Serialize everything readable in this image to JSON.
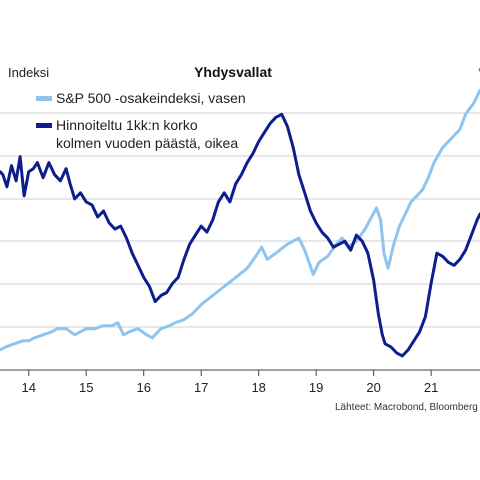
{
  "chart_data": {
    "type": "line",
    "title": "Yhdysvallat",
    "ylabel_left": "Indeksi",
    "xlabel": "",
    "x_tick_labels": [
      "14",
      "15",
      "16",
      "17",
      "18",
      "19",
      "20",
      "21"
    ],
    "x_range": [
      2013.5,
      2021.85
    ],
    "y_left_range": [
      0,
      100
    ],
    "y_right_range": [
      0,
      100
    ],
    "grid": "horizontal",
    "legend_placement": "top-left",
    "series": [
      {
        "name": "S&P 500 -osakeindeksi, vasen",
        "axis": "left",
        "color": "#8ec5f0",
        "x": [
          2013.5,
          2013.6,
          2013.75,
          2013.9,
          2014.0,
          2014.1,
          2014.25,
          2014.4,
          2014.5,
          2014.65,
          2014.8,
          2014.9,
          2015.0,
          2015.15,
          2015.3,
          2015.45,
          2015.55,
          2015.65,
          2015.75,
          2015.9,
          2016.05,
          2016.15,
          2016.3,
          2016.45,
          2016.55,
          2016.7,
          2016.85,
          2017.0,
          2017.2,
          2017.4,
          2017.6,
          2017.8,
          2017.95,
          2018.05,
          2018.15,
          2018.3,
          2018.5,
          2018.7,
          2018.8,
          2018.95,
          2019.05,
          2019.2,
          2019.35,
          2019.45,
          2019.55,
          2019.7,
          2019.85,
          2020.05,
          2020.12,
          2020.18,
          2020.25,
          2020.35,
          2020.45,
          2020.55,
          2020.65,
          2020.75,
          2020.85,
          2020.95,
          2021.05,
          2021.2,
          2021.35,
          2021.5,
          2021.6,
          2021.75,
          2021.85
        ],
        "values": [
          6,
          7,
          8,
          9,
          9,
          10,
          11,
          12,
          13,
          13,
          11,
          12,
          13,
          13,
          14,
          14,
          15,
          11,
          12,
          13,
          11,
          10,
          13,
          14,
          15,
          16,
          18,
          21,
          24,
          27,
          30,
          33,
          37,
          40,
          36,
          38,
          41,
          43,
          39,
          31,
          35,
          37,
          41,
          43,
          40,
          42,
          46,
          53,
          49,
          38,
          33,
          41,
          47,
          51,
          55,
          57,
          59,
          63,
          68,
          73,
          76,
          79,
          84,
          88,
          92
        ]
      },
      {
        "name": "Hinnoiteltu 1kk:n korko kolmen vuoden päästä, oikea",
        "axis": "right",
        "color": "#0d1e8c",
        "x": [
          2013.5,
          2013.55,
          2013.62,
          2013.7,
          2013.78,
          2013.85,
          2013.92,
          2014.0,
          2014.08,
          2014.15,
          2014.25,
          2014.35,
          2014.45,
          2014.55,
          2014.65,
          2014.72,
          2014.8,
          2014.9,
          2015.0,
          2015.1,
          2015.2,
          2015.3,
          2015.4,
          2015.5,
          2015.6,
          2015.7,
          2015.8,
          2015.9,
          2016.0,
          2016.1,
          2016.2,
          2016.3,
          2016.4,
          2016.5,
          2016.6,
          2016.7,
          2016.8,
          2016.9,
          2017.0,
          2017.1,
          2017.2,
          2017.3,
          2017.4,
          2017.5,
          2017.6,
          2017.7,
          2017.8,
          2017.9,
          2018.0,
          2018.1,
          2018.2,
          2018.3,
          2018.4,
          2018.5,
          2018.6,
          2018.7,
          2018.8,
          2018.9,
          2019.0,
          2019.1,
          2019.2,
          2019.3,
          2019.4,
          2019.5,
          2019.6,
          2019.7,
          2019.8,
          2019.9,
          2020.0,
          2020.08,
          2020.15,
          2020.2,
          2020.3,
          2020.4,
          2020.5,
          2020.6,
          2020.7,
          2020.8,
          2020.9,
          2021.0,
          2021.1,
          2021.2,
          2021.3,
          2021.4,
          2021.5,
          2021.6,
          2021.7,
          2021.8,
          2021.85
        ],
        "values": [
          65,
          64,
          60,
          67,
          62,
          70,
          57,
          65,
          66,
          68,
          63,
          68,
          64,
          62,
          66,
          61,
          56,
          58,
          55,
          54,
          50,
          52,
          48,
          46,
          47,
          43,
          38,
          34,
          30,
          27,
          22,
          24,
          25,
          28,
          30,
          36,
          41,
          44,
          47,
          45,
          49,
          55,
          58,
          55,
          61,
          64,
          68,
          71,
          75,
          78,
          81,
          83,
          84,
          80,
          73,
          64,
          58,
          52,
          48,
          45,
          43,
          40,
          41,
          42,
          39,
          44,
          42,
          38,
          29,
          18,
          11,
          8,
          7,
          5,
          4,
          6,
          9,
          12,
          17,
          28,
          38,
          37,
          35,
          34,
          36,
          39,
          44,
          49,
          51
        ]
      }
    ]
  },
  "legend": {
    "items": [
      {
        "lines": [
          "S&P 500 -osakeindeksi, vasen"
        ],
        "color": "#8ec5f0"
      },
      {
        "lines": [
          "Hinnoiteltu 1kk:n korko",
          "kolmen vuoden päästä, oikea"
        ],
        "color": "#0d1e8c"
      }
    ]
  },
  "source_text": "Lähteet: Macrobond, Bloomberg j"
}
